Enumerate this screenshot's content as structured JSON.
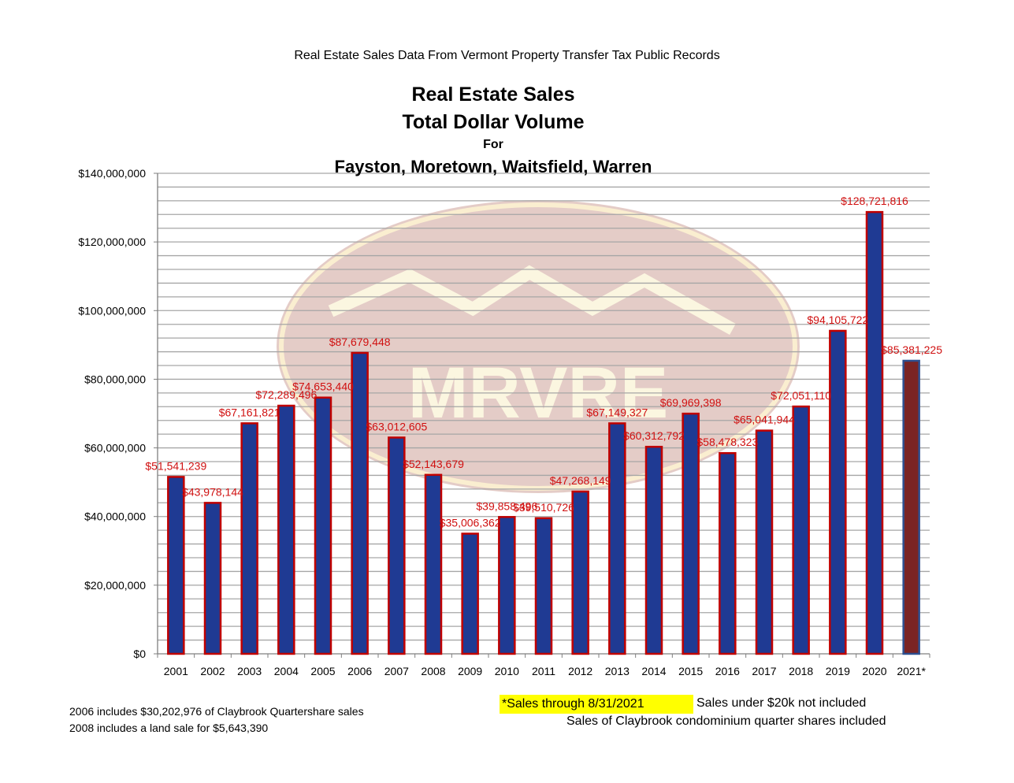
{
  "header": {
    "source": "Real Estate Sales Data From Vermont Property Transfer Tax Public Records"
  },
  "chart_data": {
    "type": "bar",
    "title": [
      "Real Estate Sales",
      "Total Dollar Volume",
      "For",
      "Fayston, Moretown, Waitsfield, Warren"
    ],
    "categories": [
      "2001",
      "2002",
      "2003",
      "2004",
      "2005",
      "2006",
      "2007",
      "2008",
      "2009",
      "2010",
      "2011",
      "2012",
      "2013",
      "2014",
      "2015",
      "2016",
      "2017",
      "2018",
      "2019",
      "2020",
      "2021*"
    ],
    "values": [
      51541239,
      43978144,
      67161821,
      72289496,
      74653440,
      87679448,
      63012605,
      52143679,
      35006362,
      39858496,
      39510726,
      47268149,
      67149327,
      60312792,
      69969398,
      58478323,
      65041944,
      72051110,
      94105722,
      128721816,
      85381225
    ],
    "data_labels": [
      "$51,541,239",
      "$43,978,144",
      "$67,161,821",
      "$72,289,496",
      "$74,653,440",
      "$87,679,448",
      "$63,012,605",
      "$52,143,679",
      "$35,006,362",
      "$39,858,496",
      "$39,510,726",
      "$47,268,149",
      "$67,149,327",
      "$60,312,792",
      "$69,969,398",
      "$58,478,323",
      "$65,041,944",
      "$72,051,110",
      "$94,105,722",
      "$128,721,816",
      "$85,381,225"
    ],
    "y_ticks": [
      0,
      20000000,
      40000000,
      60000000,
      80000000,
      100000000,
      120000000,
      140000000
    ],
    "y_tick_labels": [
      "$0",
      "$20,000,000",
      "$40,000,000",
      "$60,000,000",
      "$80,000,000",
      "$100,000,000",
      "$120,000,000",
      "$140,000,000"
    ],
    "ylim": [
      0,
      140000000
    ],
    "xlabel": "",
    "ylabel": "",
    "grid": true,
    "colors": {
      "bar_fill": "#1f3a93",
      "bar_outline": "#c00000",
      "last_bar_fill": "#7b2424",
      "last_bar_outline": "#2e4f8f",
      "data_label": "#d01010",
      "grid": "#a6a6a6"
    },
    "watermark": "MRVRE"
  },
  "footnotes": {
    "line1": "2006 includes $30,202,976 of Claybrook Quartershare sales",
    "line2": "2008 includes a land sale for $5,643,390"
  },
  "notes": {
    "highlight": "*Sales through 8/31/2021",
    "exclusion": "Sales under $20k not included",
    "inclusion": "Sales of Claybrook condominium quarter shares included"
  }
}
